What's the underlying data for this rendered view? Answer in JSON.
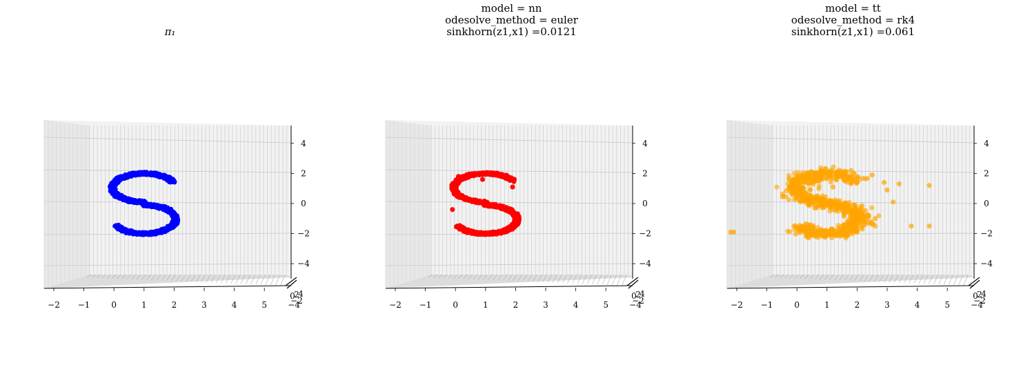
{
  "panels": [
    {
      "title_lines": [
        "π₁"
      ],
      "chart_data": {
        "type": "scatter",
        "projection": "3d",
        "color": "#0000ff",
        "alpha": 1.0,
        "shape": "S",
        "xticks": [
          "−2",
          "−1",
          "0",
          "1",
          "2",
          "3",
          "4",
          "5"
        ],
        "zticks": [
          "4",
          "2",
          "0",
          "−2",
          "−4"
        ],
        "xlim": [
          -2.3,
          5.1
        ],
        "zlim": [
          -5.0,
          5.0
        ],
        "y_tick_labels_crowded": [
          "−4",
          "−2",
          "0",
          "2",
          "4"
        ],
        "outliers": []
      }
    },
    {
      "title_lines": [
        "model = nn",
        "odesolve_method = euler",
        "sinkhorn(z1,x1) =0.0121"
      ],
      "chart_data": {
        "type": "scatter",
        "projection": "3d",
        "color": "#ff0000",
        "alpha": 0.85,
        "shape": "S",
        "xticks": [
          "−2",
          "−1",
          "0",
          "1",
          "2",
          "3",
          "4",
          "5"
        ],
        "zticks": [
          "4",
          "2",
          "0",
          "−2",
          "−4"
        ],
        "xlim": [
          -2.3,
          5.1
        ],
        "zlim": [
          -5.0,
          5.0
        ],
        "y_tick_labels_crowded": [
          "−4",
          "−2",
          "0",
          "2",
          "4"
        ],
        "outliers": [
          [
            0.1,
            1.8
          ],
          [
            0.9,
            1.6
          ],
          [
            -0.1,
            -0.4
          ],
          [
            1.9,
            1.1
          ]
        ]
      }
    },
    {
      "title_lines": [
        "model = tt",
        "odesolve_method = rk4",
        "sinkhorn(z1,x1) =0.061"
      ],
      "chart_data": {
        "type": "scatter",
        "projection": "3d",
        "color": "#ffa500",
        "alpha": 0.6,
        "shape": "S-noisy",
        "xticks": [
          "−2",
          "−1",
          "0",
          "1",
          "2",
          "3",
          "4",
          "5"
        ],
        "zticks": [
          "4",
          "2",
          "0",
          "−2",
          "−4"
        ],
        "xlim": [
          -2.3,
          5.1
        ],
        "zlim": [
          -5.0,
          5.0
        ],
        "y_tick_labels_crowded": [
          "−4",
          "−2",
          "0",
          "2",
          "4"
        ],
        "outliers": [
          [
            -2.2,
            -1.9
          ],
          [
            -2.1,
            -1.9
          ],
          [
            2.9,
            1.4
          ],
          [
            3.4,
            1.3
          ],
          [
            3.8,
            -1.5
          ],
          [
            3.2,
            0.1
          ],
          [
            4.4,
            1.2
          ],
          [
            4.4,
            -1.5
          ],
          [
            2.5,
            1.9
          ],
          [
            3.0,
            0.9
          ],
          [
            2.6,
            -1.0
          ],
          [
            1.8,
            2.2
          ],
          [
            1.2,
            1.1
          ],
          [
            0.4,
            1.3
          ],
          [
            -0.1,
            1.5
          ],
          [
            0.6,
            -0.3
          ]
        ]
      }
    }
  ]
}
